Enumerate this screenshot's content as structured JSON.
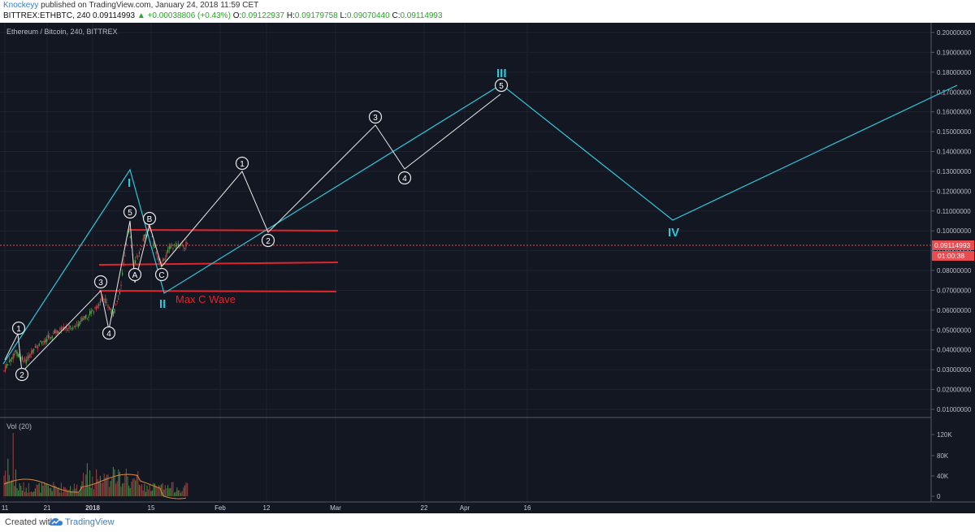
{
  "header": {
    "author": "Knockeyy",
    "published": "published on TradingView.com, January 24, 2018 11:59 CET",
    "symbol": "BITTREX:ETHBTC, 240",
    "last_price": "0.09114993",
    "change": "+0.00038806 (+0.43%)",
    "ohlc": {
      "O": "0.09122937",
      "H": "0.09179758",
      "L": "0.09070440",
      "C": "0.09114993"
    },
    "ohlc_labels": {
      "O": "O:",
      "H": "H:",
      "L": "L:",
      "C": "C:"
    }
  },
  "chart": {
    "title": "Ethereum / Bitcoin, 240, BITTREX",
    "price_axis": [
      "0.20000000",
      "0.19000000",
      "0.18000000",
      "0.17000000",
      "0.16000000",
      "0.15000000",
      "0.14000000",
      "0.13000000",
      "0.12000000",
      "0.11000000",
      "0.10000000",
      "0.09000000",
      "0.08000000",
      "0.07000000",
      "0.06000000",
      "0.05000000",
      "0.04000000",
      "0.03000000",
      "0.02000000",
      "0.01000000"
    ],
    "current_price_label": "0.09114993",
    "countdown_label": "01:00:38",
    "time_axis": [
      "11",
      "21",
      "2018",
      "15",
      "Feb",
      "12",
      "Mar",
      "22",
      "Apr",
      "16"
    ],
    "volume_label": "Vol (20)",
    "volume_axis": [
      "120K",
      "80K",
      "40K",
      "0"
    ],
    "annotations": {
      "max_c_wave": "Max C Wave",
      "wave_I": "I",
      "wave_II": "II",
      "wave_III": "III",
      "wave_IV": "IV"
    },
    "circle_labels": [
      "1",
      "2",
      "3",
      "4",
      "5",
      "A",
      "B",
      "C"
    ],
    "colors": {
      "background": "#131722",
      "grid": "#1e2330",
      "wave_cyan": "#2ec7d9",
      "wave_white": "#e8e8e8",
      "support_red": "#e0242c",
      "price_red": "#e84b50",
      "candle_up": "#5ab04b",
      "candle_down": "#c94a4a"
    }
  },
  "footer": {
    "created_with": "Created with",
    "brand": "TradingView"
  }
}
